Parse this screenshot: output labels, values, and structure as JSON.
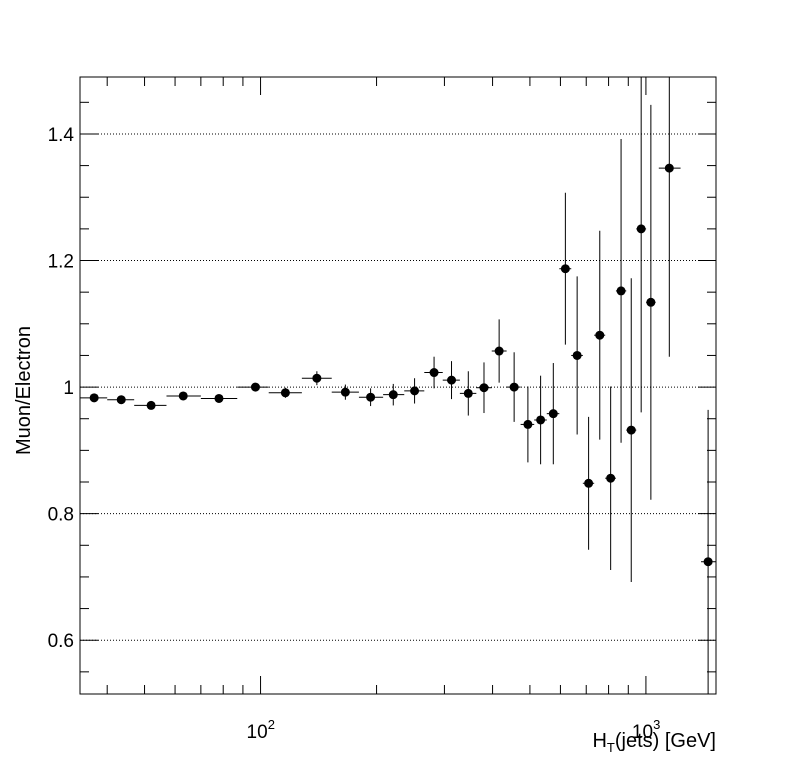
{
  "chart_data": {
    "type": "scatter",
    "title": "",
    "xscale": "log",
    "xlim": [
      34,
      1520
    ],
    "ylim": [
      0.515,
      1.49
    ],
    "grid": "horizontal-dotted",
    "xlabel": {
      "main": "H",
      "sub": "T",
      "rest": "(jets) [GeV]"
    },
    "ylabel": "Muon/Electron",
    "yticks": [
      0.6,
      0.8,
      1.0,
      1.2,
      1.4
    ],
    "ytick_labels": [
      "0.6",
      "0.8",
      "1",
      "1.2",
      "1.4"
    ],
    "xtick_labels": [
      {
        "value": 100,
        "base": "10",
        "exp": "2"
      },
      {
        "value": 1000,
        "base": "10",
        "exp": "3"
      }
    ],
    "series": [
      {
        "name": "Muon/Electron",
        "marker": "circle",
        "color": "#000000",
        "points": [
          {
            "xlo": 34,
            "xhi": 40,
            "x": 37,
            "y": 0.983,
            "err": 0.004
          },
          {
            "xlo": 40,
            "xhi": 47,
            "x": 43.5,
            "y": 0.98,
            "err": 0.004
          },
          {
            "xlo": 47,
            "xhi": 57,
            "x": 52,
            "y": 0.971,
            "err": 0.004
          },
          {
            "xlo": 57,
            "xhi": 70,
            "x": 63,
            "y": 0.986,
            "err": 0.004
          },
          {
            "xlo": 70,
            "xhi": 87,
            "x": 78,
            "y": 0.982,
            "err": 0.005
          },
          {
            "xlo": 87,
            "xhi": 105,
            "x": 97,
            "y": 1.0,
            "err": 0.006
          },
          {
            "xlo": 105,
            "xhi": 128,
            "x": 116,
            "y": 0.991,
            "err": 0.008
          },
          {
            "xlo": 128,
            "xhi": 153,
            "x": 140,
            "y": 1.014,
            "err": 0.011
          },
          {
            "xlo": 153,
            "xhi": 180,
            "x": 166,
            "y": 0.992,
            "err": 0.012
          },
          {
            "xlo": 180,
            "xhi": 208,
            "x": 193,
            "y": 0.984,
            "err": 0.014
          },
          {
            "xlo": 208,
            "xhi": 236,
            "x": 221,
            "y": 0.988,
            "err": 0.017
          },
          {
            "xlo": 236,
            "xhi": 266,
            "x": 251,
            "y": 0.994,
            "err": 0.02
          },
          {
            "xlo": 266,
            "xhi": 297,
            "x": 282,
            "y": 1.023,
            "err": 0.025
          },
          {
            "xlo": 297,
            "xhi": 329,
            "x": 313,
            "y": 1.011,
            "err": 0.03
          },
          {
            "xlo": 329,
            "xhi": 363,
            "x": 346,
            "y": 0.99,
            "err": 0.035
          },
          {
            "xlo": 363,
            "xhi": 398,
            "x": 380,
            "y": 0.999,
            "err": 0.04
          },
          {
            "xlo": 398,
            "xhi": 435,
            "x": 416,
            "y": 1.057,
            "err": 0.05
          },
          {
            "xlo": 435,
            "xhi": 473,
            "x": 455,
            "y": 1.0,
            "err": 0.055
          },
          {
            "xlo": 473,
            "xhi": 513,
            "x": 494,
            "y": 0.941,
            "err": 0.06
          },
          {
            "xlo": 513,
            "xhi": 553,
            "x": 533,
            "y": 0.948,
            "err": 0.07
          },
          {
            "xlo": 553,
            "xhi": 596,
            "x": 575,
            "y": 0.958,
            "err": 0.08
          },
          {
            "xlo": 596,
            "xhi": 640,
            "x": 618,
            "y": 1.187,
            "err": 0.12
          },
          {
            "xlo": 640,
            "xhi": 686,
            "x": 663,
            "y": 1.05,
            "err": 0.125
          },
          {
            "xlo": 686,
            "xhi": 734,
            "x": 710,
            "y": 0.848,
            "err": 0.105
          },
          {
            "xlo": 734,
            "xhi": 784,
            "x": 759,
            "y": 1.082,
            "err": 0.165
          },
          {
            "xlo": 784,
            "xhi": 836,
            "x": 810,
            "y": 0.856,
            "err": 0.145
          },
          {
            "xlo": 836,
            "xhi": 889,
            "x": 862,
            "y": 1.152,
            "err": 0.24
          },
          {
            "xlo": 889,
            "xhi": 944,
            "x": 916,
            "y": 0.932,
            "err": 0.24
          },
          {
            "xlo": 944,
            "xhi": 1001,
            "x": 972,
            "y": 1.25,
            "err": 0.29
          },
          {
            "xlo": 1001,
            "xhi": 1060,
            "x": 1030,
            "y": 1.134,
            "err": 0.312
          },
          {
            "xlo": 1080,
            "xhi": 1230,
            "x": 1150,
            "y": 1.346,
            "err": 0.298
          },
          {
            "xlo": 1390,
            "xhi": 1520,
            "x": 1450,
            "y": 0.724,
            "err": 0.24
          }
        ]
      }
    ]
  }
}
